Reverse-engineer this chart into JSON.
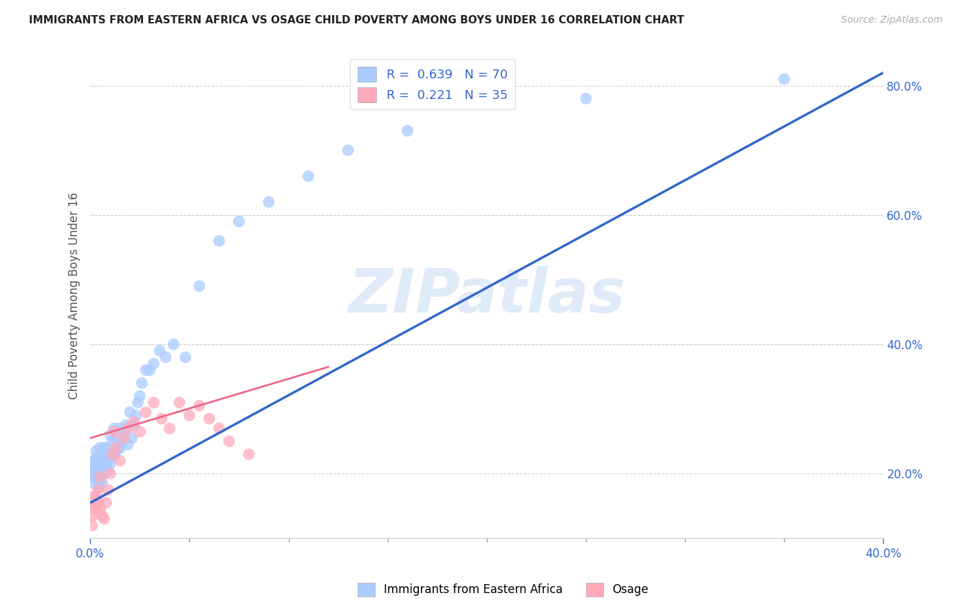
{
  "title": "IMMIGRANTS FROM EASTERN AFRICA VS OSAGE CHILD POVERTY AMONG BOYS UNDER 16 CORRELATION CHART",
  "source": "Source: ZipAtlas.com",
  "ylabel": "Child Poverty Among Boys Under 16",
  "xlabel_legend1": "Immigrants from Eastern Africa",
  "xlabel_legend2": "Osage",
  "R1": 0.639,
  "N1": 70,
  "R2": 0.221,
  "N2": 35,
  "xlim": [
    0.0,
    0.4
  ],
  "ylim": [
    0.1,
    0.85
  ],
  "xticks_show": [
    0.0,
    0.4
  ],
  "xticks_minor": [
    0.05,
    0.1,
    0.15,
    0.2,
    0.25,
    0.3,
    0.35
  ],
  "yticks": [
    0.2,
    0.4,
    0.6,
    0.8
  ],
  "color_blue": "#aaccff",
  "color_pink": "#ffaabb",
  "color_line_blue": "#3366cc",
  "color_line_pink": "#ee6688",
  "background_color": "#ffffff",
  "watermark": "ZIPatlas",
  "blue_points_x": [
    0.001,
    0.001,
    0.001,
    0.002,
    0.002,
    0.002,
    0.002,
    0.003,
    0.003,
    0.003,
    0.003,
    0.003,
    0.004,
    0.004,
    0.004,
    0.004,
    0.005,
    0.005,
    0.005,
    0.005,
    0.005,
    0.006,
    0.006,
    0.006,
    0.007,
    0.007,
    0.007,
    0.008,
    0.008,
    0.009,
    0.009,
    0.01,
    0.01,
    0.01,
    0.011,
    0.011,
    0.012,
    0.012,
    0.013,
    0.013,
    0.014,
    0.015,
    0.015,
    0.016,
    0.017,
    0.018,
    0.019,
    0.02,
    0.021,
    0.022,
    0.023,
    0.024,
    0.025,
    0.026,
    0.028,
    0.03,
    0.032,
    0.035,
    0.038,
    0.042,
    0.048,
    0.055,
    0.065,
    0.075,
    0.09,
    0.11,
    0.13,
    0.16,
    0.25,
    0.35
  ],
  "blue_points_y": [
    0.195,
    0.205,
    0.215,
    0.185,
    0.2,
    0.21,
    0.22,
    0.195,
    0.205,
    0.215,
    0.225,
    0.235,
    0.18,
    0.195,
    0.21,
    0.225,
    0.19,
    0.2,
    0.215,
    0.225,
    0.24,
    0.185,
    0.205,
    0.22,
    0.2,
    0.22,
    0.24,
    0.215,
    0.24,
    0.205,
    0.23,
    0.215,
    0.23,
    0.26,
    0.225,
    0.25,
    0.23,
    0.27,
    0.235,
    0.255,
    0.24,
    0.24,
    0.27,
    0.25,
    0.265,
    0.275,
    0.245,
    0.295,
    0.255,
    0.275,
    0.29,
    0.31,
    0.32,
    0.34,
    0.36,
    0.36,
    0.37,
    0.39,
    0.38,
    0.4,
    0.38,
    0.49,
    0.56,
    0.59,
    0.62,
    0.66,
    0.7,
    0.73,
    0.78,
    0.81
  ],
  "pink_points_x": [
    0.001,
    0.001,
    0.001,
    0.002,
    0.002,
    0.003,
    0.003,
    0.004,
    0.004,
    0.005,
    0.005,
    0.006,
    0.007,
    0.008,
    0.009,
    0.01,
    0.011,
    0.012,
    0.013,
    0.015,
    0.017,
    0.019,
    0.022,
    0.025,
    0.028,
    0.032,
    0.036,
    0.04,
    0.045,
    0.05,
    0.055,
    0.06,
    0.065,
    0.07,
    0.08
  ],
  "pink_points_y": [
    0.12,
    0.135,
    0.155,
    0.145,
    0.165,
    0.15,
    0.165,
    0.155,
    0.175,
    0.145,
    0.195,
    0.135,
    0.13,
    0.155,
    0.175,
    0.2,
    0.23,
    0.265,
    0.24,
    0.22,
    0.255,
    0.27,
    0.28,
    0.265,
    0.295,
    0.31,
    0.285,
    0.27,
    0.31,
    0.29,
    0.305,
    0.285,
    0.27,
    0.25,
    0.23
  ],
  "blue_line_x": [
    0.0,
    0.4
  ],
  "blue_line_y": [
    0.155,
    0.82
  ],
  "pink_line_x": [
    0.0,
    0.12
  ],
  "pink_line_y": [
    0.255,
    0.365
  ]
}
